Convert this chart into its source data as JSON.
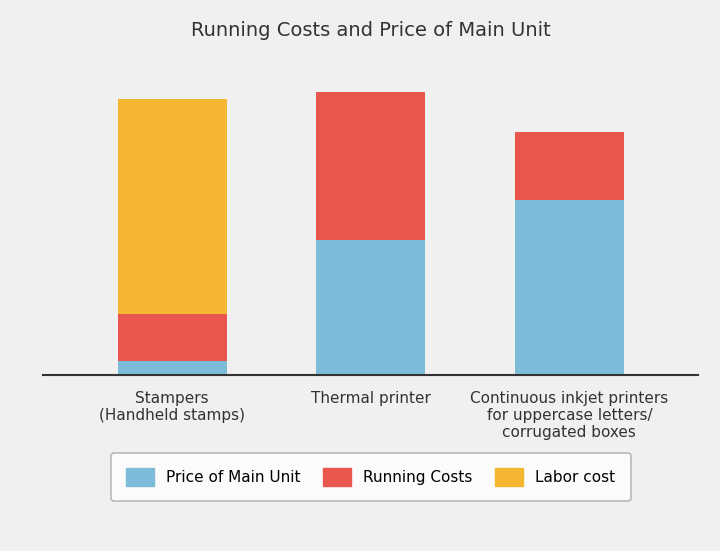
{
  "title": "Running Costs and Price of Main Unit",
  "categories": [
    "Stampers\n(Handheld stamps)",
    "Thermal printer",
    "Continuous inkjet printers\nfor uppercase letters/\ncorrugated boxes"
  ],
  "price_of_main_unit": [
    0.04,
    0.4,
    0.52
  ],
  "running_costs": [
    0.14,
    0.44,
    0.2
  ],
  "labor_cost": [
    0.64,
    0.0,
    0.0
  ],
  "color_price": "#7DBCD8",
  "color_running": "#E8564E",
  "color_labor": "#F5B731",
  "bg_color": "#f0f0f0",
  "legend_labels": [
    "Price of Main Unit",
    "Running Costs",
    "Labor cost"
  ],
  "title_fontsize": 14,
  "label_fontsize": 11,
  "legend_fontsize": 11,
  "bar_width": 0.55,
  "ylim": [
    0,
    0.95
  ]
}
